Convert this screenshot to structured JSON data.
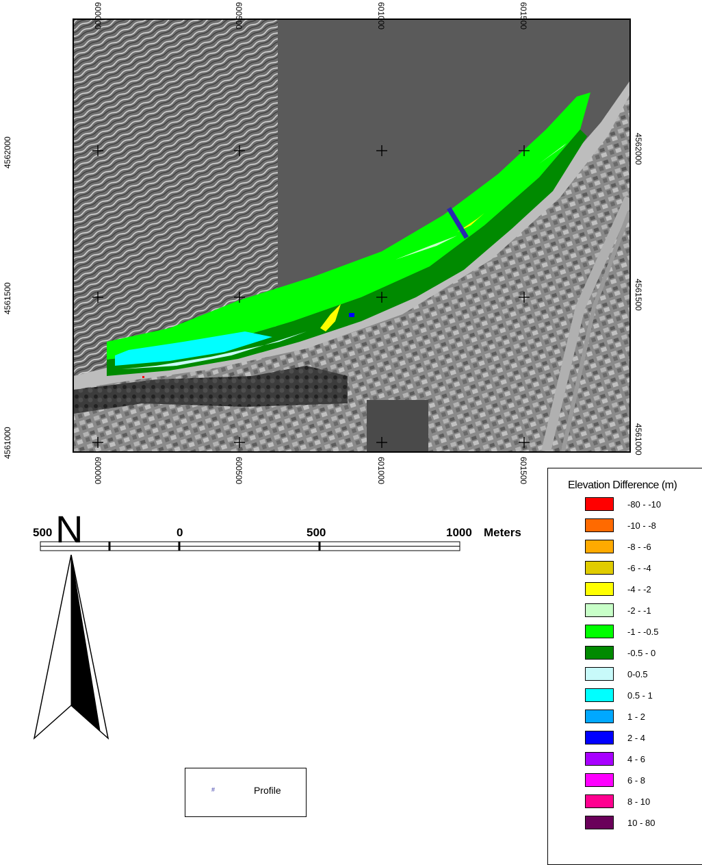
{
  "map": {
    "x_ticks": [
      "600000",
      "600500",
      "601000",
      "601500"
    ],
    "y_ticks": [
      "4562000",
      "4561500",
      "4561000"
    ],
    "grid_crosses": "plus-cross-icon",
    "colors": {
      "water": "#5b5b5b",
      "wave_water": "#7a7a7a",
      "land": "#8c8c8c",
      "beach": "#c9c9c9"
    }
  },
  "legend": {
    "title": "Elevation Difference (m)",
    "items": [
      {
        "label": "-80 - -10",
        "color": "#ff0000"
      },
      {
        "label": "-10 - -8",
        "color": "#ff6a00"
      },
      {
        "label": "-8 - -6",
        "color": "#ffaa00"
      },
      {
        "label": "-6 - -4",
        "color": "#e0cc00"
      },
      {
        "label": "-4 - -2",
        "color": "#ffff00"
      },
      {
        "label": "-2 - -1",
        "color": "#c8ffc8"
      },
      {
        "label": "-1 - -0.5",
        "color": "#00ff00"
      },
      {
        "label": "-0.5 - 0",
        "color": "#008a00"
      },
      {
        "label": "0-0.5",
        "color": "#c8fafa"
      },
      {
        "label": "0.5 - 1",
        "color": "#00ffff"
      },
      {
        "label": "1 - 2",
        "color": "#00a8ff"
      },
      {
        "label": "2 - 4",
        "color": "#0000ff"
      },
      {
        "label": "4 - 6",
        "color": "#a800ff"
      },
      {
        "label": "6 - 8",
        "color": "#ff00ff"
      },
      {
        "label": "8 - 10",
        "color": "#ff0090"
      },
      {
        "label": "10 - 80",
        "color": "#6a005a"
      }
    ]
  },
  "scale_bar": {
    "labels": [
      "500",
      "0",
      "500",
      "1000"
    ],
    "units": "Meters"
  },
  "north_arrow": {
    "letter": "N",
    "icon": "north-arrow-icon"
  },
  "profile_legend": {
    "symbol": "#",
    "label": "Profile"
  }
}
